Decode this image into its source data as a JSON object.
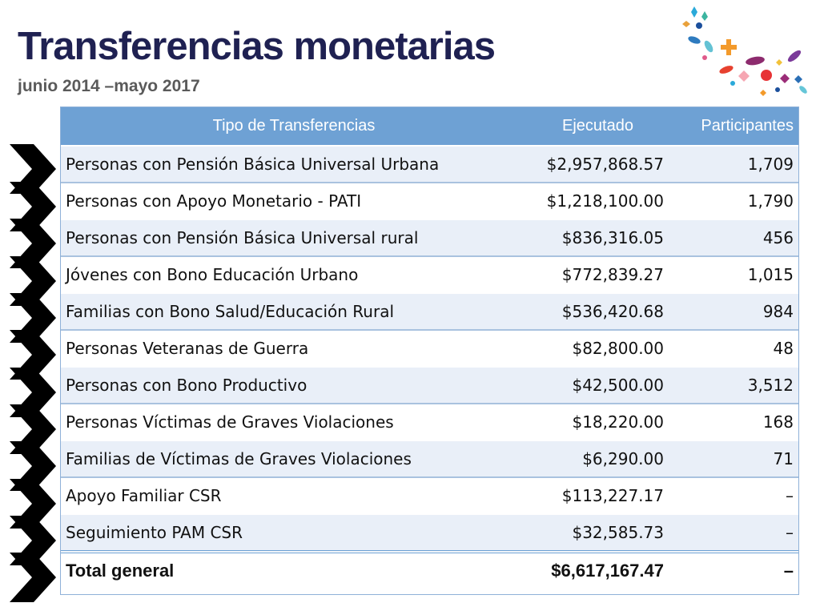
{
  "header": {
    "title": "Transferencias monetarias",
    "subtitle": "junio 2014 –mayo 2017"
  },
  "table": {
    "columns": [
      "Tipo de Transferencias",
      "Ejecutado",
      "Participantes"
    ],
    "rows": [
      {
        "tipo": "Personas con Pensión Básica Universal Urbana",
        "ejecutado": "$2,957,868.57",
        "participantes": "1,709"
      },
      {
        "tipo": "Personas con Apoyo Monetario - PATI",
        "ejecutado": "$1,218,100.00",
        "participantes": "1,790"
      },
      {
        "tipo": "Personas con Pensión Básica Universal rural",
        "ejecutado": "$836,316.05",
        "participantes": "456"
      },
      {
        "tipo": "Jóvenes con Bono Educación Urbano",
        "ejecutado": "$772,839.27",
        "participantes": "1,015"
      },
      {
        "tipo": "Familias con Bono Salud/Educación Rural",
        "ejecutado": "$536,420.68",
        "participantes": "984"
      },
      {
        "tipo": "Personas Veteranas de Guerra",
        "ejecutado": "$82,800.00",
        "participantes": "48"
      },
      {
        "tipo": "Personas con Bono Productivo",
        "ejecutado": "$42,500.00",
        "participantes": "3,512"
      },
      {
        "tipo": "Personas Víctimas de Graves Violaciones",
        "ejecutado": "$18,220.00",
        "participantes": "168"
      },
      {
        "tipo": "Familias de Víctimas de Graves Violaciones",
        "ejecutado": "$6,290.00",
        "participantes": "71"
      },
      {
        "tipo": "Apoyo Familiar CSR",
        "ejecutado": "$113,227.17",
        "participantes": "–"
      },
      {
        "tipo": "Seguimiento PAM CSR",
        "ejecutado": "$32,585.73",
        "participantes": "–"
      }
    ],
    "total": {
      "tipo": "Total general",
      "ejecutado": "$6,617,167.47",
      "participantes": "–"
    }
  },
  "colors": {
    "title": "#1f2152",
    "header_bg": "#6ea1d4",
    "row_band": "#e9eff8",
    "arrow": "#000000"
  },
  "icons": {
    "arrows": "chevron-arrow-right-icon",
    "decoration": "confetti-decoration"
  }
}
